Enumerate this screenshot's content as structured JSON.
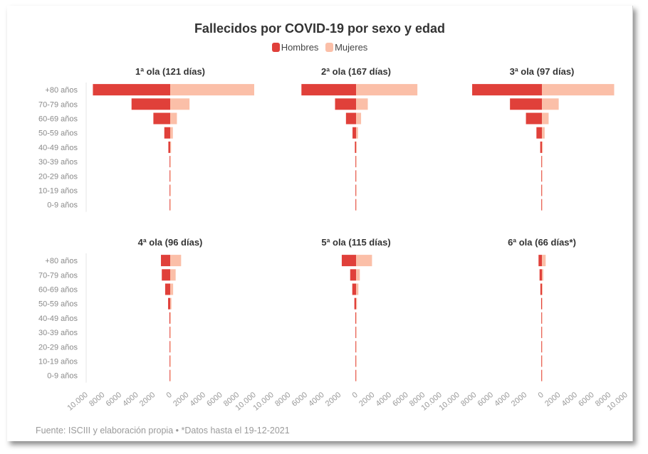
{
  "title": "Fallecidos por COVID-19 por sexo y edad",
  "legend": {
    "men_label": "Hombres",
    "women_label": "Mujeres",
    "men_color": "#e0403a",
    "women_color": "#fbbfa8"
  },
  "source": "Fuente: ISCIII y elaboración propia • *Datos hasta el 19-12-2021",
  "chart_data": [
    {
      "type": "bar",
      "title": "1ª ola (121 días)",
      "categories": [
        "+80 años",
        "70-79 años",
        "60-69 años",
        "50-59 años",
        "40-49 años",
        "30-39 años",
        "20-29 años",
        "10-19 años",
        "0-9 años"
      ],
      "series": [
        {
          "name": "Hombres",
          "values": [
            9200,
            4600,
            2000,
            700,
            220,
            70,
            30,
            8,
            6
          ]
        },
        {
          "name": "Mujeres",
          "values": [
            10000,
            2300,
            800,
            320,
            110,
            35,
            15,
            5,
            4
          ]
        }
      ],
      "xlim": [
        -10000,
        10000
      ]
    },
    {
      "type": "bar",
      "title": "2ª ola (167 días)",
      "categories": [
        "+80 años",
        "70-79 años",
        "60-69 años",
        "50-59 años",
        "40-49 años",
        "30-39 años",
        "20-29 años",
        "10-19 años",
        "0-9 años"
      ],
      "series": [
        {
          "name": "Hombres",
          "values": [
            6500,
            2500,
            1200,
            420,
            140,
            40,
            15,
            5,
            4
          ]
        },
        {
          "name": "Mujeres",
          "values": [
            7300,
            1400,
            600,
            230,
            80,
            25,
            10,
            4,
            3
          ]
        }
      ],
      "xlim": [
        -10000,
        10000
      ]
    },
    {
      "type": "bar",
      "title": "3ª ola (97 días)",
      "categories": [
        "+80 años",
        "70-79 años",
        "60-69 años",
        "50-59 años",
        "40-49 años",
        "30-39 años",
        "20-29 años",
        "10-19 años",
        "0-9 años"
      ],
      "series": [
        {
          "name": "Hombres",
          "values": [
            8300,
            3800,
            1900,
            650,
            200,
            55,
            20,
            6,
            4
          ]
        },
        {
          "name": "Mujeres",
          "values": [
            8600,
            2000,
            800,
            330,
            110,
            30,
            12,
            4,
            3
          ]
        }
      ],
      "xlim": [
        -10000,
        10000
      ]
    },
    {
      "type": "bar",
      "title": "4ª ola (96 días)",
      "categories": [
        "+80 años",
        "70-79 años",
        "60-69 años",
        "50-59 años",
        "40-49 años",
        "30-39 años",
        "20-29 años",
        "10-19 años",
        "0-9 años"
      ],
      "series": [
        {
          "name": "Hombres",
          "values": [
            1100,
            1000,
            600,
            250,
            90,
            30,
            12,
            4,
            3
          ]
        },
        {
          "name": "Mujeres",
          "values": [
            1300,
            650,
            350,
            150,
            60,
            20,
            8,
            3,
            2
          ]
        }
      ],
      "xlim": [
        -10000,
        10000
      ]
    },
    {
      "type": "bar",
      "title": "5ª ola (115 días)",
      "categories": [
        "+80 años",
        "70-79 años",
        "60-69 años",
        "50-59 años",
        "40-49 años",
        "30-39 años",
        "20-29 años",
        "10-19 años",
        "0-9 años"
      ],
      "series": [
        {
          "name": "Hombres",
          "values": [
            1700,
            700,
            450,
            200,
            80,
            30,
            12,
            4,
            3
          ]
        },
        {
          "name": "Mujeres",
          "values": [
            1900,
            450,
            280,
            110,
            45,
            18,
            8,
            3,
            2
          ]
        }
      ],
      "xlim": [
        -10000,
        10000
      ]
    },
    {
      "type": "bar",
      "title": "6ª ola (66 días*)",
      "categories": [
        "+80 años",
        "70-79 años",
        "60-69 años",
        "50-59 años",
        "40-49 años",
        "30-39 años",
        "20-29 años",
        "10-19 años",
        "0-9 años"
      ],
      "series": [
        {
          "name": "Hombres",
          "values": [
            400,
            280,
            180,
            90,
            40,
            15,
            6,
            2,
            1
          ]
        },
        {
          "name": "Mujeres",
          "values": [
            450,
            170,
            90,
            45,
            20,
            8,
            4,
            2,
            1
          ]
        }
      ],
      "xlim": [
        -10000,
        10000
      ]
    }
  ],
  "axis_ticks": [
    "10.000",
    "8000",
    "6000",
    "4000",
    "2000",
    "0",
    "2000",
    "4000",
    "6000",
    "8000",
    "10.000"
  ],
  "axis_tick_values": [
    -10000,
    -8000,
    -6000,
    -4000,
    -2000,
    0,
    2000,
    4000,
    6000,
    8000,
    10000
  ]
}
